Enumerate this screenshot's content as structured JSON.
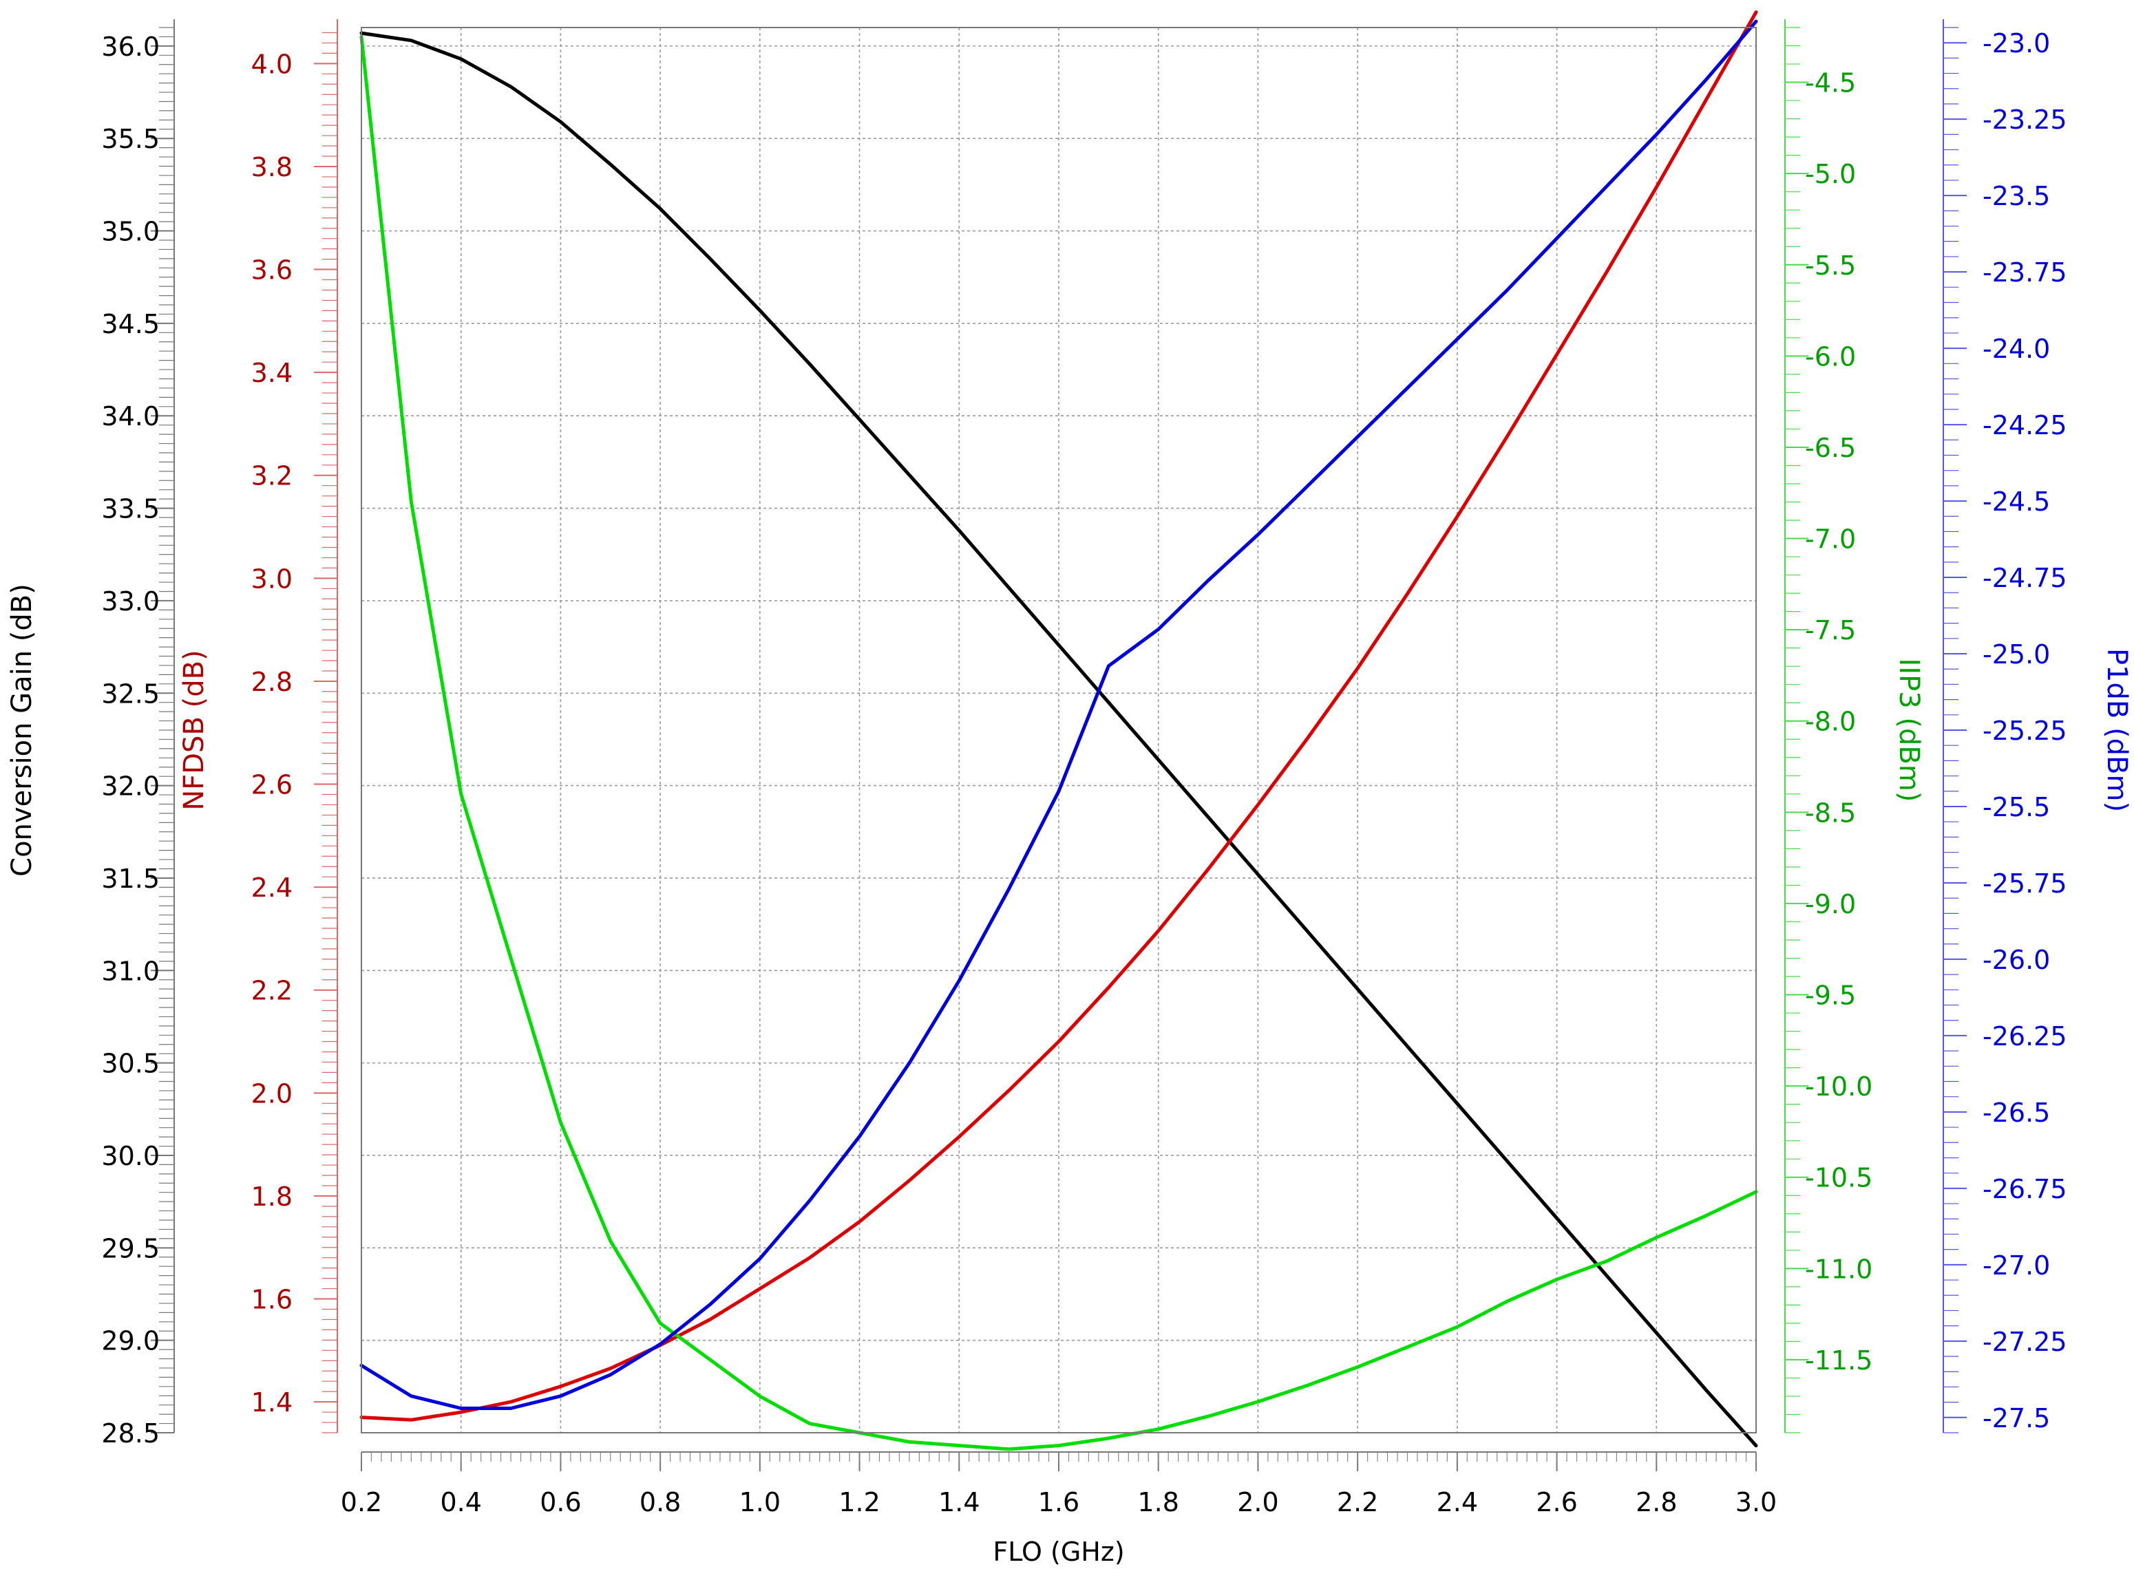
{
  "chart_data": {
    "type": "line",
    "xlabel": "FLO (GHz)",
    "xlim": [
      0.2,
      3.0
    ],
    "x_ticks": [
      "0.2",
      "0.4",
      "0.6",
      "0.8",
      "1.0",
      "1.2",
      "1.4",
      "1.6",
      "1.8",
      "2.0",
      "2.2",
      "2.4",
      "2.6",
      "2.8",
      "3.0"
    ],
    "grid": true,
    "axes": [
      {
        "key": "gain",
        "label": "Conversion Gain (dB)",
        "color": "#000000",
        "range": [
          28.5,
          36.1
        ],
        "ticks": [
          "28.5",
          "29.0",
          "29.5",
          "30.0",
          "30.5",
          "31.0",
          "31.5",
          "32.0",
          "32.5",
          "33.0",
          "33.5",
          "34.0",
          "34.5",
          "35.0",
          "35.5",
          "36.0"
        ]
      },
      {
        "key": "nf",
        "label": "NFDSB (dB)",
        "color": "#aa0000",
        "range": [
          1.34,
          4.07
        ],
        "ticks": [
          "1.4",
          "1.6",
          "1.8",
          "2.0",
          "2.2",
          "2.4",
          "2.6",
          "2.8",
          "3.0",
          "3.2",
          "3.4",
          "3.6",
          "3.8",
          "4.0"
        ]
      },
      {
        "key": "iip3",
        "label": "IIP3 (dBm)",
        "color": "#00a000",
        "range": [
          -11.9,
          -4.2
        ],
        "ticks": [
          "-4.5",
          "-5.0",
          "-5.5",
          "-6.0",
          "-6.5",
          "-7.0",
          "-7.5",
          "-8.0",
          "-8.5",
          "-9.0",
          "-9.5",
          "-10.0",
          "-10.5",
          "-11.0",
          "-11.5"
        ]
      },
      {
        "key": "p1db",
        "label": "P1dB (dBm)",
        "color": "#0000dd",
        "range": [
          -27.55,
          -22.95
        ],
        "ticks": [
          "-23.0",
          "-23.25",
          "-23.5",
          "-23.75",
          "-24.0",
          "-24.25",
          "-24.5",
          "-24.75",
          "-25.0",
          "-25.25",
          "-25.5",
          "-25.75",
          "-26.0",
          "-26.25",
          "-26.5",
          "-26.75",
          "-27.0",
          "-27.25",
          "-27.5"
        ]
      }
    ],
    "x": [
      0.2,
      0.3,
      0.4,
      0.5,
      0.6,
      0.7,
      0.8,
      0.9,
      1.0,
      1.1,
      1.2,
      1.3,
      1.4,
      1.5,
      1.6,
      1.7,
      1.8,
      1.9,
      2.0,
      2.1,
      2.2,
      2.3,
      2.4,
      2.5,
      2.6,
      2.7,
      2.8,
      2.9,
      3.0
    ],
    "series": [
      {
        "axis": "gain",
        "color": "#000000",
        "values": [
          36.07,
          36.03,
          35.93,
          35.78,
          35.59,
          35.36,
          35.12,
          34.85,
          34.57,
          34.28,
          33.98,
          33.68,
          33.38,
          33.07,
          32.76,
          32.45,
          32.14,
          31.83,
          31.52,
          31.21,
          30.9,
          30.59,
          30.28,
          29.97,
          29.66,
          29.35,
          29.04,
          28.73,
          28.43
        ]
      },
      {
        "axis": "nf",
        "color": "#dd0000",
        "values": [
          1.37,
          1.365,
          1.38,
          1.4,
          1.43,
          1.465,
          1.51,
          1.56,
          1.62,
          1.68,
          1.75,
          1.83,
          1.915,
          2.005,
          2.1,
          2.205,
          2.315,
          2.435,
          2.56,
          2.69,
          2.825,
          2.97,
          3.12,
          3.275,
          3.435,
          3.595,
          3.76,
          3.93,
          4.1
        ]
      },
      {
        "axis": "iip3",
        "color": "#00dd00",
        "values": [
          -4.25,
          -6.8,
          -8.4,
          -9.3,
          -10.2,
          -10.85,
          -11.3,
          -11.5,
          -11.7,
          -11.85,
          -11.9,
          -11.95,
          -11.97,
          -11.99,
          -11.97,
          -11.93,
          -11.88,
          -11.81,
          -11.73,
          -11.64,
          -11.54,
          -11.43,
          -11.32,
          -11.18,
          -11.06,
          -10.96,
          -10.83,
          -10.71,
          -10.58
        ]
      },
      {
        "axis": "p1db",
        "color": "#0000dd",
        "values": [
          -27.33,
          -27.43,
          -27.47,
          -27.47,
          -27.43,
          -27.36,
          -27.26,
          -27.13,
          -26.98,
          -26.79,
          -26.58,
          -26.34,
          -26.07,
          -25.77,
          -25.45,
          -25.04,
          -24.92,
          -24.76,
          -24.61,
          -24.45,
          -24.29,
          -24.13,
          -23.97,
          -23.81,
          -23.64,
          -23.47,
          -23.3,
          -23.12,
          -22.93
        ]
      }
    ]
  }
}
